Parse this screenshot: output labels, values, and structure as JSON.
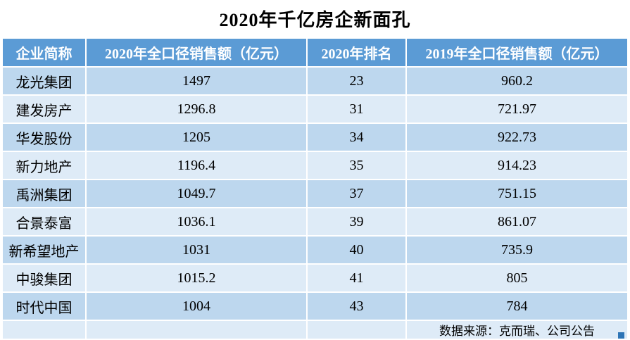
{
  "title": "2020年千亿房企新面孔",
  "table": {
    "headers": [
      "企业简称",
      "2020年全口径销售额（亿元）",
      "2020年排名",
      "2019年全口径销售额（亿元）"
    ],
    "rows": [
      [
        "龙光集团",
        "1497",
        "23",
        "960.2"
      ],
      [
        "建发房产",
        "1296.8",
        "31",
        "721.97"
      ],
      [
        "华发股份",
        "1205",
        "34",
        "922.73"
      ],
      [
        "新力地产",
        "1196.4",
        "35",
        "914.23"
      ],
      [
        "禹洲集团",
        "1049.7",
        "37",
        "751.15"
      ],
      [
        "合景泰富",
        "1036.1",
        "39",
        "861.07"
      ],
      [
        "新希望地产",
        "1031",
        "40",
        "735.9"
      ],
      [
        "中骏集团",
        "1015.2",
        "41",
        "805"
      ],
      [
        "时代中国",
        "1004",
        "43",
        "784"
      ]
    ],
    "footer_note": "数据来源：克而瑞、公司公告"
  },
  "colors": {
    "header_bg": "#5B9BD5",
    "header_text": "#FFFFFF",
    "band_dark": "#BDD7EE",
    "band_light": "#DEEBF7",
    "body_text": "#000000",
    "corner_square": "#2E75B6"
  },
  "chart_data": {
    "type": "table",
    "title": "2020年千亿房企新面孔",
    "columns": [
      "企业简称",
      "2020年全口径销售额（亿元）",
      "2020年排名",
      "2019年全口径销售额（亿元）"
    ],
    "rows": [
      {
        "company": "龙光集团",
        "sales_2020": 1497,
        "rank_2020": 23,
        "sales_2019": 960.2
      },
      {
        "company": "建发房产",
        "sales_2020": 1296.8,
        "rank_2020": 31,
        "sales_2019": 721.97
      },
      {
        "company": "华发股份",
        "sales_2020": 1205,
        "rank_2020": 34,
        "sales_2019": 922.73
      },
      {
        "company": "新力地产",
        "sales_2020": 1196.4,
        "rank_2020": 35,
        "sales_2019": 914.23
      },
      {
        "company": "禹洲集团",
        "sales_2020": 1049.7,
        "rank_2020": 37,
        "sales_2019": 751.15
      },
      {
        "company": "合景泰富",
        "sales_2020": 1036.1,
        "rank_2020": 39,
        "sales_2019": 861.07
      },
      {
        "company": "新希望地产",
        "sales_2020": 1031,
        "rank_2020": 40,
        "sales_2019": 735.9
      },
      {
        "company": "中骏集团",
        "sales_2020": 1015.2,
        "rank_2020": 41,
        "sales_2019": 805
      },
      {
        "company": "时代中国",
        "sales_2020": 1004,
        "rank_2020": 43,
        "sales_2019": 784
      }
    ],
    "source_note": "数据来源：克而瑞、公司公告",
    "layout": "banded rows, blue header, centered values"
  }
}
